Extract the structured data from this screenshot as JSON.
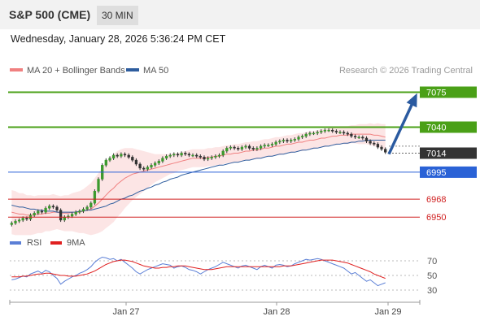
{
  "header": {
    "symbol_title": "S&P 500 (CME)",
    "timeframe": "30 MIN",
    "datetime": "Wednesday, January 28, 2026 5:36:24 PM CET"
  },
  "legend": {
    "ma20": "MA 20 + Bollinger Bands",
    "ma50": "MA 50",
    "ma20_color": "#f08080",
    "ma50_color": "#2e5d9e",
    "credit": "Research © 2026 Trading Central"
  },
  "rsi_legend": {
    "rsi": "RSI",
    "ma9": "9MA",
    "rsi_color": "#5b7fd6",
    "ma9_color": "#e02020"
  },
  "chart_data": {
    "type": "candlestick",
    "ylim": [
      6938,
      7090
    ],
    "levels": [
      {
        "value": 7075,
        "label": "7075",
        "style": "target",
        "color": "#4aa017"
      },
      {
        "value": 7040,
        "label": "7040",
        "style": "target",
        "color": "#4aa017"
      },
      {
        "value": 7014,
        "label": "7014",
        "style": "current",
        "color": "#333333"
      },
      {
        "value": 6995,
        "label": "6995",
        "style": "pivot",
        "color": "#2a62d6"
      },
      {
        "value": 6968,
        "label": "6968",
        "style": "support",
        "color": "#d02020"
      },
      {
        "value": 6950,
        "label": "6950",
        "style": "support",
        "color": "#d02020"
      }
    ],
    "x_ticks": [
      "Jan 27",
      "Jan 28",
      "Jan 29"
    ],
    "rsi_ticks": [
      70,
      50,
      30
    ],
    "arrow": {
      "direction": "up",
      "from": 7013,
      "to": 7071,
      "color": "#2a5aa0"
    },
    "closes": [
      6944,
      6946,
      6947,
      6949,
      6948,
      6952,
      6954,
      6956,
      6955,
      6959,
      6961,
      6960,
      6957,
      6947,
      6950,
      6951,
      6953,
      6955,
      6956,
      6958,
      6960,
      6964,
      6976,
      6988,
      7002,
      7007,
      7009,
      7012,
      7011,
      7013,
      7012,
      7010,
      7007,
      7003,
      6999,
      6998,
      7000,
      7002,
      7004,
      7006,
      7009,
      7011,
      7012,
      7013,
      7012,
      7014,
      7013,
      7012,
      7012,
      7011,
      7010,
      7008,
      7009,
      7010,
      7011,
      7012,
      7016,
      7019,
      7020,
      7019,
      7018,
      7020,
      7021,
      7019,
      7018,
      7019,
      7021,
      7022,
      7022,
      7023,
      7025,
      7026,
      7027,
      7026,
      7027,
      7028,
      7030,
      7031,
      7033,
      7034,
      7034,
      7035,
      7036,
      7037,
      7037,
      7036,
      7035,
      7035,
      7034,
      7033,
      7031,
      7030,
      7030,
      7029,
      7026,
      7024,
      7023,
      7020,
      7018,
      7015
    ],
    "ma20": [
      6955,
      6954,
      6953,
      6953,
      6952,
      6952,
      6952,
      6953,
      6953,
      6954,
      6954,
      6955,
      6955,
      6954,
      6954,
      6954,
      6955,
      6955,
      6955,
      6956,
      6957,
      6958,
      6961,
      6964,
      6968,
      6972,
      6976,
      6979,
      6983,
      6986,
      6989,
      6991,
      6993,
      6994,
      6995,
      6996,
      6997,
      6998,
      6999,
      7000,
      7001,
      7002,
      7003,
      7004,
      7005,
      7006,
      7007,
      7008,
      7009,
      7009,
      7009,
      7009,
      7010,
      7010,
      7011,
      7011,
      7012,
      7013,
      7013,
      7014,
      7014,
      7015,
      7016,
      7016,
      7017,
      7017,
      7018,
      7019,
      7019,
      7020,
      7021,
      7021,
      7022,
      7023,
      7023,
      7024,
      7025,
      7025,
      7026,
      7027,
      7027,
      7028,
      7029,
      7029,
      7030,
      7031,
      7031,
      7032,
      7032,
      7032,
      7033,
      7033,
      7033,
      7033,
      7033,
      7033,
      7032,
      7032,
      7031,
      7030
    ],
    "ma50": [
      6962,
      6961,
      6960,
      6960,
      6959,
      6958,
      6958,
      6957,
      6957,
      6956,
      6956,
      6956,
      6955,
      6955,
      6955,
      6955,
      6955,
      6955,
      6956,
      6956,
      6957,
      6957,
      6958,
      6959,
      6960,
      6961,
      6963,
      6964,
      6966,
      6968,
      6969,
      6971,
      6972,
      6974,
      6976,
      6977,
      6979,
      6980,
      6982,
      6983,
      6985,
      6986,
      6988,
      6989,
      6990,
      6992,
      6993,
      6994,
      6995,
      6996,
      6997,
      6998,
      6999,
      7000,
      7001,
      7002,
      7002,
      7003,
      7004,
      7005,
      7005,
      7006,
      7007,
      7007,
      7008,
      7009,
      7009,
      7010,
      7011,
      7011,
      7012,
      7013,
      7013,
      7014,
      7015,
      7015,
      7016,
      7017,
      7017,
      7018,
      7019,
      7019,
      7020,
      7021,
      7021,
      7022,
      7023,
      7023,
      7024,
      7024,
      7025,
      7025,
      7026,
      7026,
      7027,
      7027,
      7027,
      7027,
      7027,
      7027
    ],
    "bb_width": [
      22,
      22,
      21,
      21,
      20,
      20,
      19,
      19,
      19,
      18,
      18,
      18,
      17,
      17,
      18,
      18,
      19,
      20,
      21,
      22,
      24,
      26,
      28,
      30,
      32,
      33,
      34,
      34,
      33,
      32,
      30,
      28,
      26,
      24,
      22,
      20,
      18,
      16,
      14,
      13,
      12,
      11,
      10,
      10,
      9,
      9,
      9,
      9,
      9,
      9,
      9,
      9,
      9,
      9,
      9,
      9,
      9,
      9,
      9,
      9,
      9,
      9,
      9,
      9,
      9,
      9,
      9,
      9,
      9,
      9,
      9,
      9,
      9,
      9,
      9,
      9,
      9,
      9,
      9,
      9,
      9,
      9,
      9,
      9,
      9,
      9,
      9,
      9,
      9,
      9,
      9,
      9,
      10,
      10,
      10,
      11,
      11,
      12,
      12,
      13
    ],
    "rsi": [
      44,
      45,
      47,
      49,
      48,
      52,
      54,
      56,
      53,
      57,
      55,
      50,
      46,
      38,
      42,
      45,
      48,
      50,
      53,
      55,
      58,
      62,
      68,
      72,
      75,
      74,
      72,
      73,
      70,
      72,
      68,
      64,
      60,
      55,
      52,
      55,
      58,
      60,
      62,
      64,
      66,
      65,
      64,
      60,
      62,
      63,
      61,
      58,
      57,
      55,
      52,
      55,
      58,
      60,
      62,
      65,
      68,
      66,
      64,
      62,
      60,
      63,
      64,
      62,
      60,
      58,
      62,
      64,
      62,
      60,
      64,
      65,
      64,
      62,
      63,
      66,
      68,
      70,
      72,
      71,
      72,
      73,
      72,
      70,
      68,
      66,
      64,
      62,
      60,
      56,
      52,
      54,
      50,
      46,
      42,
      44,
      40,
      36,
      38,
      40
    ],
    "rsi_ma9": [
      48,
      48,
      48,
      49,
      49,
      50,
      51,
      52,
      52,
      53,
      53,
      52,
      51,
      50,
      50,
      49,
      49,
      49,
      50,
      51,
      52,
      54,
      56,
      59,
      62,
      65,
      67,
      69,
      70,
      71,
      71,
      70,
      69,
      67,
      65,
      63,
      62,
      61,
      60,
      60,
      61,
      61,
      62,
      62,
      63,
      63,
      63,
      62,
      61,
      60,
      59,
      58,
      58,
      58,
      59,
      60,
      61,
      62,
      62,
      62,
      62,
      62,
      62,
      62,
      62,
      62,
      62,
      62,
      62,
      62,
      62,
      62,
      63,
      63,
      63,
      64,
      65,
      66,
      67,
      68,
      69,
      70,
      71,
      71,
      71,
      71,
      70,
      69,
      68,
      67,
      65,
      63,
      61,
      59,
      57,
      55,
      52,
      50,
      48,
      46
    ]
  }
}
